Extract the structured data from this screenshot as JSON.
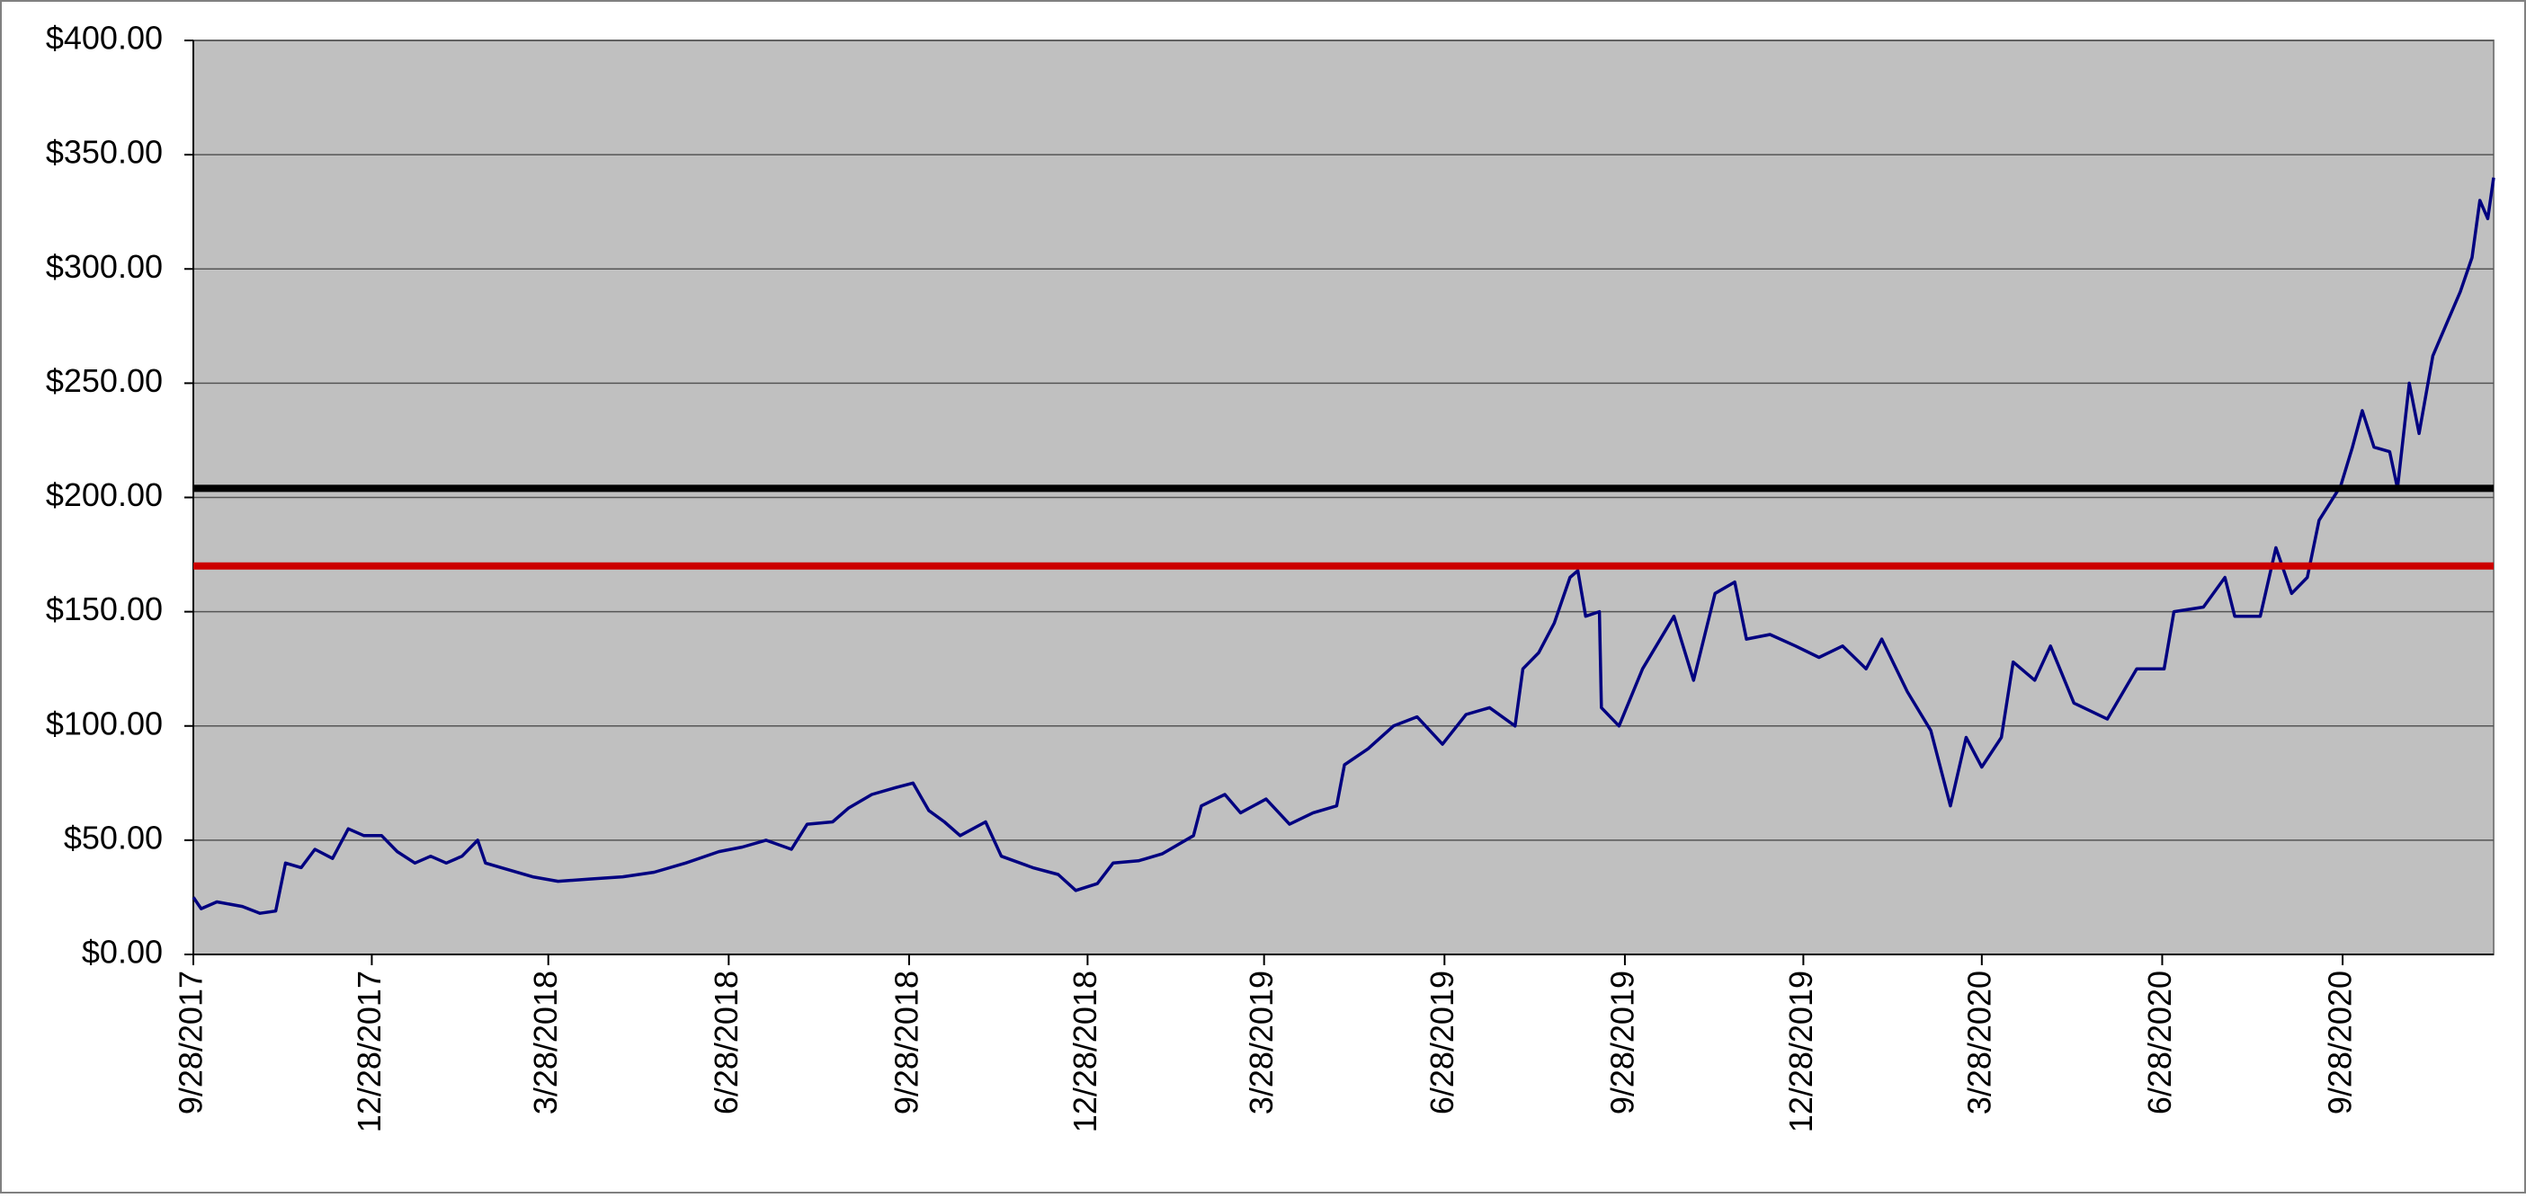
{
  "chart_data": {
    "type": "line",
    "x": [
      "9/28/2017",
      "10/2/2017",
      "10/10/2017",
      "10/23/2017",
      "11/1/2017",
      "11/9/2017",
      "11/14/2017",
      "11/22/2017",
      "11/29/2017",
      "12/8/2017",
      "12/16/2017",
      "12/24/2017",
      "1/2/2018",
      "1/10/2018",
      "1/19/2018",
      "1/27/2018",
      "2/4/2018",
      "2/12/2018",
      "2/20/2018",
      "2/24/2018",
      "3/4/2018",
      "3/20/2018",
      "4/2/2018",
      "4/18/2018",
      "5/5/2018",
      "5/21/2018",
      "6/6/2018",
      "6/23/2018",
      "7/5/2018",
      "7/17/2018",
      "7/30/2018",
      "8/7/2018",
      "8/20/2018",
      "8/28/2018",
      "9/9/2018",
      "9/21/2018",
      "9/30/2018",
      "10/8/2018",
      "10/16/2018",
      "10/24/2018",
      "11/6/2018",
      "11/14/2018",
      "11/30/2018",
      "12/13/2018",
      "12/22/2018",
      "1/2/2019",
      "1/10/2019",
      "1/23/2019",
      "2/4/2019",
      "2/20/2019",
      "2/24/2019",
      "3/8/2019",
      "3/16/2019",
      "3/29/2019",
      "4/10/2019",
      "4/22/2019",
      "5/4/2019",
      "5/8/2019",
      "5/20/2019",
      "6/2/2019",
      "6/14/2019",
      "6/27/2019",
      "7/9/2019",
      "7/21/2019",
      "8/3/2019",
      "8/7/2019",
      "8/15/2019",
      "8/23/2019",
      "8/31/2019",
      "9/4/2019",
      "9/8/2019",
      "9/15/2019",
      "9/16/2019",
      "9/25/2019",
      "10/7/2019",
      "10/23/2019",
      "11/2/2019",
      "11/13/2019",
      "11/23/2019",
      "11/29/2019",
      "12/11/2019",
      "12/24/2019",
      "1/5/2020",
      "1/17/2020",
      "1/29/2020",
      "2/6/2020",
      "2/19/2020",
      "3/2/2020",
      "3/12/2020",
      "3/20/2020",
      "3/28/2020",
      "4/7/2020",
      "4/13/2020",
      "4/24/2020",
      "5/2/2020",
      "5/14/2020",
      "5/31/2020",
      "6/15/2020",
      "6/29/2020",
      "7/4/2020",
      "7/19/2020",
      "7/30/2020",
      "8/4/2020",
      "8/17/2020",
      "8/25/2020",
      "9/2/2020",
      "9/10/2020",
      "9/16/2020",
      "9/27/2020",
      "10/3/2020",
      "10/8/2020",
      "10/14/2020",
      "10/22/2020",
      "10/26/2020",
      "11/1/2020",
      "11/6/2020",
      "11/13/2020",
      "11/21/2020",
      "11/27/2020",
      "12/3/2020",
      "12/7/2020",
      "12/11/2020",
      "12/14/2020"
    ],
    "series": [
      {
        "color": "#000080",
        "values": [
          25,
          20,
          23,
          21,
          18,
          19,
          40,
          38,
          46,
          42,
          55,
          52,
          52,
          45,
          40,
          43,
          40,
          43,
          50,
          40,
          38,
          34,
          32,
          33,
          34,
          36,
          40,
          45,
          47,
          50,
          46,
          57,
          58,
          64,
          70,
          73,
          75,
          63,
          58,
          52,
          58,
          43,
          38,
          35,
          28,
          31,
          40,
          41,
          44,
          52,
          65,
          70,
          62,
          68,
          57,
          62,
          65,
          83,
          90,
          100,
          104,
          92,
          105,
          108,
          100,
          125,
          132,
          145,
          165,
          168,
          148,
          150,
          108,
          100,
          125,
          148,
          120,
          158,
          163,
          138,
          140,
          135,
          130,
          135,
          125,
          138,
          115,
          98,
          65,
          95,
          82,
          95,
          128,
          120,
          135,
          110,
          103,
          125,
          125,
          150,
          152,
          165,
          148,
          148,
          178,
          158,
          165,
          190,
          205,
          222,
          238,
          222,
          220,
          204,
          250,
          228,
          262,
          278,
          290,
          305,
          330,
          322,
          340
        ]
      }
    ],
    "reference_lines": [
      {
        "value": 204,
        "color": "#000000"
      },
      {
        "value": 170,
        "color": "#cc0000"
      }
    ],
    "xlim": [
      "9/28/2017",
      "12/14/2020"
    ],
    "xticks": [
      "9/28/2017",
      "12/28/2017",
      "3/28/2018",
      "6/28/2018",
      "9/28/2018",
      "12/28/2018",
      "3/28/2019",
      "6/28/2019",
      "9/28/2019",
      "12/28/2019",
      "3/28/2020",
      "6/28/2020",
      "9/28/2020"
    ],
    "ylim": [
      0,
      400
    ],
    "yticks": [
      {
        "value": 0,
        "label": "$0.00"
      },
      {
        "value": 50,
        "label": "$50.00"
      },
      {
        "value": 100,
        "label": "$100.00"
      },
      {
        "value": 150,
        "label": "$150.00"
      },
      {
        "value": 200,
        "label": "$200.00"
      },
      {
        "value": 250,
        "label": "$250.00"
      },
      {
        "value": 300,
        "label": "$300.00"
      },
      {
        "value": 350,
        "label": "$350.00"
      },
      {
        "value": 400,
        "label": "$400.00"
      }
    ],
    "grid": true,
    "plot_background": "#c0c0c0"
  }
}
